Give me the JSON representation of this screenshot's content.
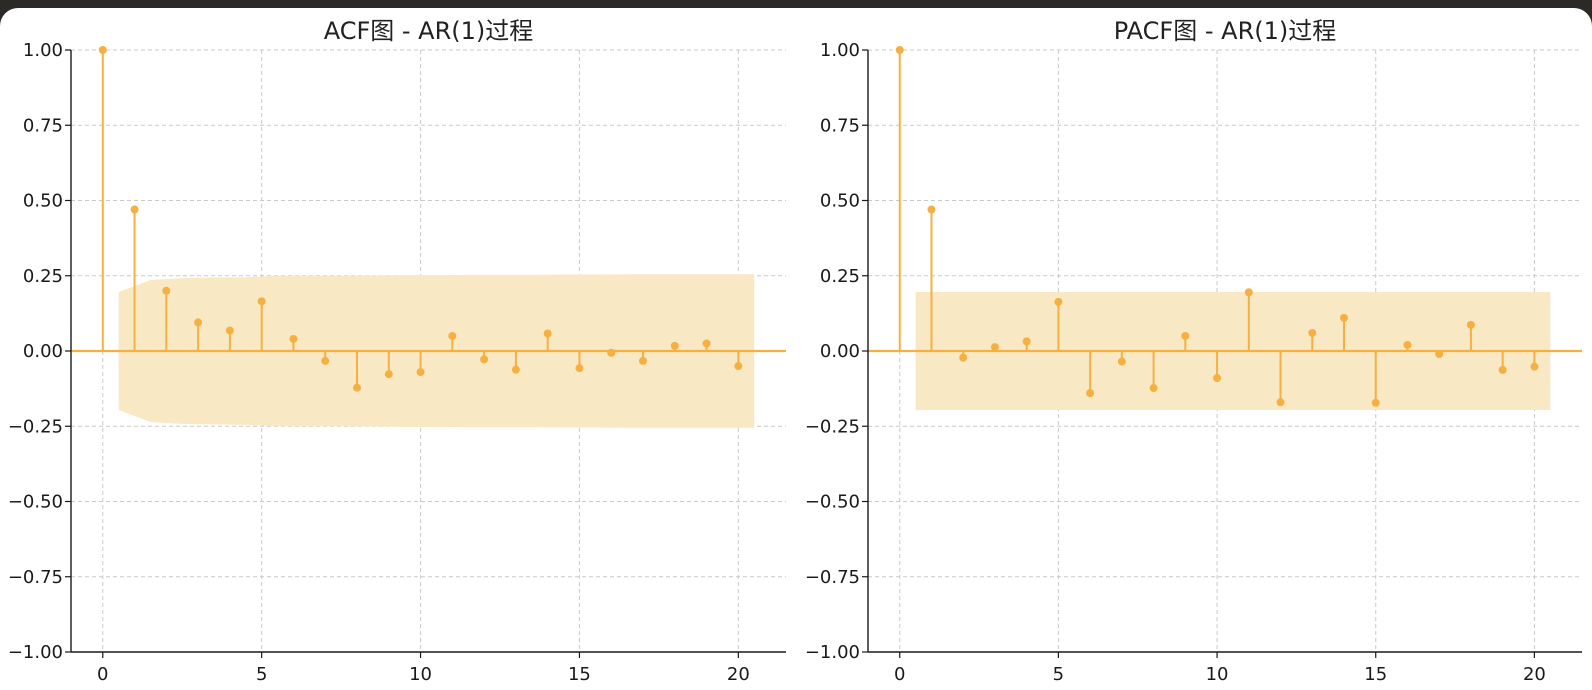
{
  "colors": {
    "accent": "#f5b041",
    "confidence_band": "#f9e8c4",
    "window_frame": "#2b2a27",
    "background": "#ffffff"
  },
  "chart_data": [
    {
      "type": "stem",
      "title": "ACF图 - AR(1)过程",
      "xlabel": "",
      "ylabel": "",
      "xlim": [
        -1,
        21.5
      ],
      "ylim": [
        -1,
        1
      ],
      "grid": true,
      "x_ticks": [
        0,
        5,
        10,
        15,
        20
      ],
      "y_ticks": [
        1.0,
        0.75,
        0.5,
        0.25,
        0.0,
        -0.25,
        -0.5,
        -0.75,
        -1.0
      ],
      "x_tick_labels": [
        "0",
        "5",
        "10",
        "15",
        "20"
      ],
      "y_tick_labels": [
        "1.00",
        "0.75",
        "0.50",
        "0.25",
        "0.00",
        "−0.25",
        "−0.50",
        "−0.75",
        "−1.00"
      ],
      "lags": [
        0,
        1,
        2,
        3,
        4,
        5,
        6,
        7,
        8,
        9,
        10,
        11,
        12,
        13,
        14,
        15,
        16,
        17,
        18,
        19,
        20
      ],
      "values": [
        1.0,
        0.47,
        0.2,
        0.095,
        0.068,
        0.165,
        0.04,
        -0.033,
        -0.122,
        -0.077,
        -0.07,
        0.05,
        -0.028,
        -0.062,
        0.058,
        -0.057,
        -0.006,
        -0.033,
        0.017,
        0.025,
        -0.05
      ],
      "confidence_band": {
        "lags": [
          0.5,
          1.5,
          2.5,
          3.5,
          4.5,
          5.5,
          6.5,
          7.5,
          8.5,
          9.5,
          10.5,
          11.5,
          12.5,
          13.5,
          14.5,
          15.5,
          16.5,
          17.5,
          18.5,
          19.5,
          20.5
        ],
        "upper": [
          0.196,
          0.236,
          0.242,
          0.244,
          0.245,
          0.25,
          0.25,
          0.25,
          0.251,
          0.252,
          0.252,
          0.253,
          0.253,
          0.253,
          0.254,
          0.254,
          0.255,
          0.255,
          0.255,
          0.255,
          0.255
        ]
      }
    },
    {
      "type": "stem",
      "title": "PACF图 - AR(1)过程",
      "xlabel": "",
      "ylabel": "",
      "xlim": [
        -1,
        21.5
      ],
      "ylim": [
        -1,
        1
      ],
      "grid": true,
      "x_ticks": [
        0,
        5,
        10,
        15,
        20
      ],
      "y_ticks": [
        1.0,
        0.75,
        0.5,
        0.25,
        0.0,
        -0.25,
        -0.5,
        -0.75,
        -1.0
      ],
      "x_tick_labels": [
        "0",
        "5",
        "10",
        "15",
        "20"
      ],
      "y_tick_labels": [
        "1.00",
        "0.75",
        "0.50",
        "0.25",
        "0.00",
        "−0.25",
        "−0.50",
        "−0.75",
        "−1.00"
      ],
      "lags": [
        0,
        1,
        2,
        3,
        4,
        5,
        6,
        7,
        8,
        9,
        10,
        11,
        12,
        13,
        14,
        15,
        16,
        17,
        18,
        19,
        20
      ],
      "values": [
        1.0,
        0.47,
        -0.022,
        0.013,
        0.032,
        0.163,
        -0.14,
        -0.035,
        -0.123,
        0.05,
        -0.09,
        0.195,
        -0.17,
        0.06,
        0.11,
        -0.172,
        0.02,
        -0.01,
        0.087,
        -0.063,
        -0.052
      ],
      "confidence_band": {
        "lags": [
          0.5,
          20.5
        ],
        "upper": [
          0.196,
          0.196
        ]
      }
    }
  ]
}
